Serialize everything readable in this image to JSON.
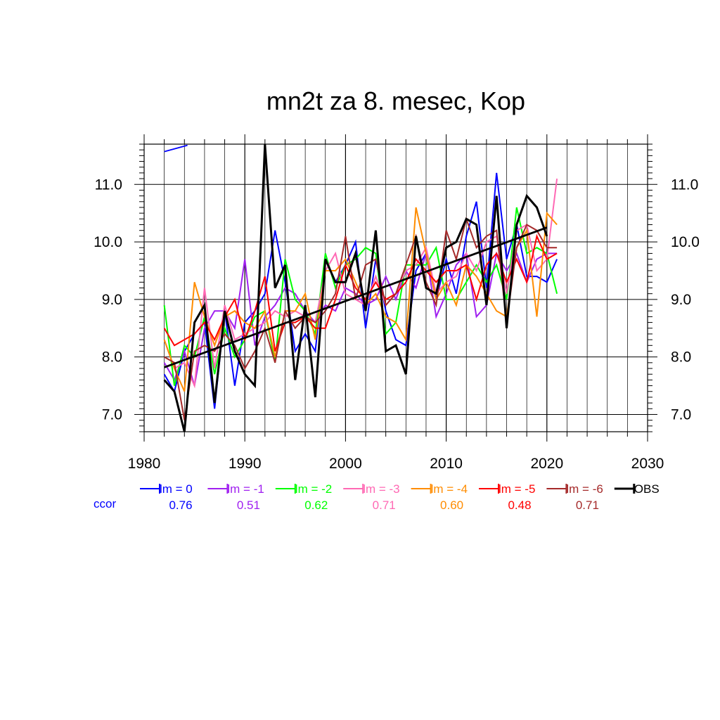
{
  "chart_data": {
    "type": "line",
    "title": "mn2t za 8. mesec, Kop",
    "xlabel": "",
    "ylabel": "",
    "xlim": [
      1980,
      2030
    ],
    "ylim": [
      6.7,
      11.7
    ],
    "x_ticks": [
      1980,
      1990,
      2000,
      2010,
      2020,
      2030
    ],
    "y_ticks": [
      7.0,
      8.0,
      9.0,
      10.0,
      11.0
    ],
    "y_tick_labels": [
      "7.0",
      "8.0",
      "9.0",
      "10.0",
      "11.0"
    ],
    "grid": true,
    "legend_position": "bottom",
    "ccor_label": "ccor",
    "series": [
      {
        "name": "lm = 0",
        "color": "#0000ff",
        "ccor": "0.76",
        "x": [
          1982,
          1983,
          1984,
          1985,
          1986,
          1987,
          1988,
          1989,
          1990,
          1991,
          1992,
          1993,
          1994,
          1995,
          1996,
          1997,
          1998,
          1999,
          2000,
          2001,
          2002,
          2003,
          2004,
          2005,
          2006,
          2007,
          2008,
          2009,
          2010,
          2011,
          2012,
          2013,
          2014,
          2015,
          2016,
          2017,
          2018,
          2019,
          2020,
          2021
        ],
        "y": [
          7.7,
          7.4,
          8.1,
          8.4,
          8.6,
          7.1,
          8.8,
          7.5,
          8.6,
          8.8,
          9.1,
          10.2,
          9.3,
          8.1,
          8.4,
          8.1,
          9.7,
          9.3,
          9.6,
          10.0,
          8.5,
          9.7,
          8.8,
          8.3,
          8.2,
          9.5,
          9.8,
          9.0,
          9.7,
          9.1,
          10.1,
          10.7,
          9.2,
          11.2,
          9.7,
          10.3,
          9.4,
          9.4,
          9.3,
          9.7
        ]
      },
      {
        "name": "lm = -1",
        "color": "#a020f0",
        "ccor": "0.51",
        "x": [
          1982,
          1983,
          1984,
          1985,
          1986,
          1987,
          1988,
          1989,
          1990,
          1991,
          1992,
          1993,
          1994,
          1995,
          1996,
          1997,
          1998,
          1999,
          2000,
          2001,
          2002,
          2003,
          2004,
          2005,
          2006,
          2007,
          2008,
          2009,
          2010,
          2011,
          2012,
          2013,
          2014,
          2015,
          2016,
          2017,
          2018,
          2019,
          2020,
          2021
        ],
        "y": [
          7.9,
          7.6,
          8.1,
          7.5,
          8.5,
          8.8,
          8.8,
          8.5,
          9.7,
          8.2,
          8.7,
          8.9,
          9.2,
          9.1,
          8.8,
          8.6,
          8.9,
          8.8,
          9.2,
          9.1,
          8.9,
          9.0,
          9.4,
          9.0,
          9.5,
          9.2,
          9.8,
          8.7,
          9.1,
          9.6,
          9.8,
          8.7,
          8.9,
          9.8,
          9.5,
          9.8,
          9.3,
          9.7,
          9.8,
          9.8
        ]
      },
      {
        "name": "lm = -2",
        "color": "#00ff00",
        "ccor": "0.62",
        "x": [
          1982,
          1983,
          1984,
          1985,
          1986,
          1987,
          1988,
          1989,
          1990,
          1991,
          1992,
          1993,
          1994,
          1995,
          1996,
          1997,
          1998,
          1999,
          2000,
          2001,
          2002,
          2003,
          2004,
          2005,
          2006,
          2007,
          2008,
          2009,
          2010,
          2011,
          2012,
          2013,
          2014,
          2015,
          2016,
          2017,
          2018,
          2019,
          2020,
          2021
        ],
        "y": [
          8.9,
          7.5,
          8.2,
          8.0,
          8.7,
          7.7,
          8.5,
          8.0,
          8.3,
          8.7,
          8.8,
          7.9,
          9.7,
          9.0,
          8.8,
          8.4,
          9.8,
          9.2,
          9.6,
          9.7,
          9.9,
          9.8,
          8.4,
          8.6,
          9.6,
          9.6,
          9.6,
          9.9,
          9.0,
          9.0,
          9.3,
          9.6,
          9.3,
          9.6,
          9.0,
          10.6,
          9.8,
          9.9,
          9.8,
          9.1
        ]
      },
      {
        "name": "lm = -3",
        "color": "#ff69b4",
        "ccor": "0.71",
        "x": [
          1982,
          1983,
          1984,
          1985,
          1986,
          1987,
          1988,
          1989,
          1990,
          1991,
          1992,
          1993,
          1994,
          1995,
          1996,
          1997,
          1998,
          1999,
          2000,
          2001,
          2002,
          2003,
          2004,
          2005,
          2006,
          2007,
          2008,
          2009,
          2010,
          2011,
          2012,
          2013,
          2014,
          2015,
          2016,
          2017,
          2018,
          2019,
          2020,
          2021
        ],
        "y": [
          8.3,
          7.8,
          7.9,
          7.5,
          9.2,
          7.8,
          8.9,
          8.3,
          8.4,
          8.5,
          8.6,
          8.8,
          8.7,
          8.8,
          8.7,
          8.6,
          9.5,
          9.8,
          9.1,
          9.0,
          8.9,
          9.4,
          8.9,
          9.1,
          9.5,
          9.6,
          9.9,
          9.1,
          9.3,
          9.4,
          9.8,
          9.5,
          10.0,
          10.1,
          9.1,
          10.2,
          10.3,
          9.5,
          9.7,
          11.1
        ]
      },
      {
        "name": "lm = -4",
        "color": "#ff8c00",
        "ccor": "0.60",
        "x": [
          1982,
          1983,
          1984,
          1985,
          1986,
          1987,
          1988,
          1989,
          1990,
          1991,
          1992,
          1993,
          1994,
          1995,
          1996,
          1997,
          1998,
          1999,
          2000,
          2001,
          2002,
          2003,
          2004,
          2005,
          2006,
          2007,
          2008,
          2009,
          2010,
          2011,
          2012,
          2013,
          2014,
          2015,
          2016,
          2017,
          2018,
          2019,
          2020,
          2021
        ],
        "y": [
          8.3,
          7.8,
          7.4,
          9.3,
          8.7,
          8.2,
          8.7,
          8.8,
          8.6,
          8.5,
          8.8,
          8.0,
          8.8,
          8.8,
          9.1,
          8.3,
          9.5,
          9.5,
          9.7,
          9.3,
          8.9,
          9.1,
          8.7,
          8.6,
          8.3,
          10.6,
          9.8,
          9.0,
          9.3,
          8.9,
          9.6,
          9.4,
          9.1,
          8.8,
          8.7,
          9.9,
          10.2,
          8.7,
          10.5,
          10.3
        ]
      },
      {
        "name": "lm = -5",
        "color": "#ff0000",
        "ccor": "0.48",
        "x": [
          1982,
          1983,
          1984,
          1985,
          1986,
          1987,
          1988,
          1989,
          1990,
          1991,
          1992,
          1993,
          1994,
          1995,
          1996,
          1997,
          1998,
          1999,
          2000,
          2001,
          2002,
          2003,
          2004,
          2005,
          2006,
          2007,
          2008,
          2009,
          2010,
          2011,
          2012,
          2013,
          2014,
          2015,
          2016,
          2017,
          2018,
          2019,
          2020,
          2021
        ],
        "y": [
          8.5,
          8.2,
          8.3,
          8.4,
          8.6,
          8.3,
          8.7,
          9.0,
          8.3,
          8.8,
          9.4,
          8.1,
          8.6,
          8.6,
          8.7,
          8.5,
          8.5,
          9.0,
          9.6,
          9.2,
          9.0,
          9.3,
          9.0,
          9.1,
          9.3,
          9.7,
          9.5,
          9.3,
          9.5,
          9.5,
          9.6,
          9.0,
          9.6,
          9.8,
          9.3,
          9.7,
          9.3,
          10.1,
          9.7,
          9.8
        ]
      },
      {
        "name": "lm = -6",
        "color": "#a52a2a",
        "ccor": "0.71",
        "x": [
          1982,
          1983,
          1984,
          1985,
          1986,
          1987,
          1988,
          1989,
          1990,
          1991,
          1992,
          1993,
          1994,
          1995,
          1996,
          1997,
          1998,
          1999,
          2000,
          2001,
          2002,
          2003,
          2004,
          2005,
          2006,
          2007,
          2008,
          2009,
          2010,
          2011,
          2012,
          2013,
          2014,
          2015,
          2016,
          2017,
          2018,
          2019,
          2020,
          2021
        ],
        "y": [
          8.0,
          7.9,
          6.9,
          8.1,
          8.2,
          8.1,
          8.4,
          8.2,
          7.8,
          8.1,
          8.5,
          7.9,
          8.8,
          8.5,
          8.7,
          8.6,
          8.8,
          9.1,
          10.1,
          9.0,
          9.6,
          9.7,
          8.9,
          9.1,
          9.6,
          10.1,
          9.3,
          8.9,
          10.2,
          9.7,
          10.4,
          9.9,
          10.1,
          10.2,
          8.6,
          9.9,
          10.3,
          10.2,
          9.9,
          9.9
        ]
      },
      {
        "name": "OBS",
        "color": "#000000",
        "ccor": "",
        "x": [
          1982,
          1983,
          1984,
          1985,
          1986,
          1987,
          1988,
          1989,
          1990,
          1991,
          1992,
          1993,
          1994,
          1995,
          1996,
          1997,
          1998,
          1999,
          2000,
          2001,
          2002,
          2003,
          2004,
          2005,
          2006,
          2007,
          2008,
          2009,
          2010,
          2011,
          2012,
          2013,
          2014,
          2015,
          2016,
          2017,
          2018,
          2019,
          2020
        ],
        "y": [
          7.6,
          7.4,
          6.7,
          8.6,
          8.9,
          7.2,
          8.8,
          8.1,
          7.7,
          7.5,
          11.7,
          9.2,
          9.6,
          7.6,
          8.9,
          7.3,
          9.7,
          9.3,
          9.3,
          9.8,
          8.8,
          10.2,
          8.1,
          8.2,
          7.7,
          10.1,
          9.2,
          9.1,
          9.9,
          10.0,
          10.4,
          10.3,
          8.9,
          10.8,
          8.5,
          10.3,
          10.8,
          10.6,
          10.1
        ]
      }
    ],
    "trend": {
      "x": [
        1982,
        2020
      ],
      "y": [
        7.82,
        10.25
      ]
    },
    "extra_segment": {
      "x": [
        1982,
        1984.3
      ],
      "y": [
        11.57,
        11.68
      ]
    }
  }
}
